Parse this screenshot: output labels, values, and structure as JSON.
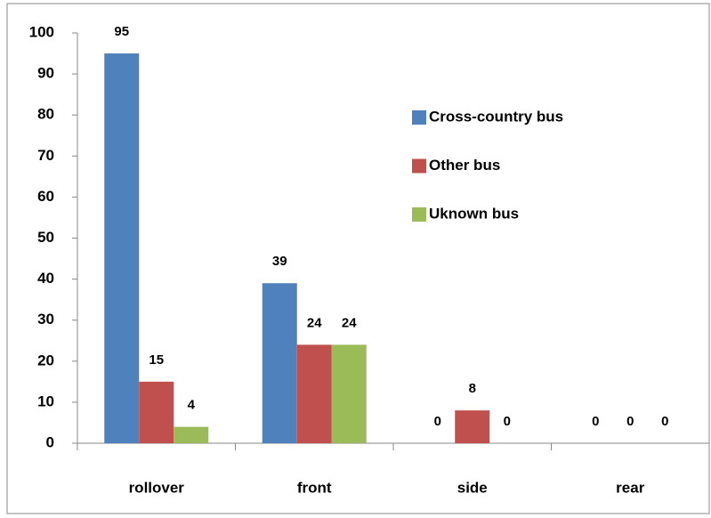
{
  "chart_data": {
    "type": "bar",
    "categories": [
      "rollover",
      "front",
      "side",
      "rear"
    ],
    "series": [
      {
        "name": "Cross-country bus",
        "color": "#4f81bd",
        "values": [
          95,
          39,
          0,
          0
        ]
      },
      {
        "name": "Other bus",
        "color": "#c0504d",
        "values": [
          15,
          24,
          8,
          0
        ]
      },
      {
        "name": "Uknown bus",
        "color": "#9bbb59",
        "values": [
          4,
          24,
          0,
          0
        ]
      }
    ],
    "ylim": [
      0,
      100
    ],
    "yticks": [
      0,
      10,
      20,
      30,
      40,
      50,
      60,
      70,
      80,
      90,
      100
    ],
    "grid": false,
    "legend": "right"
  }
}
